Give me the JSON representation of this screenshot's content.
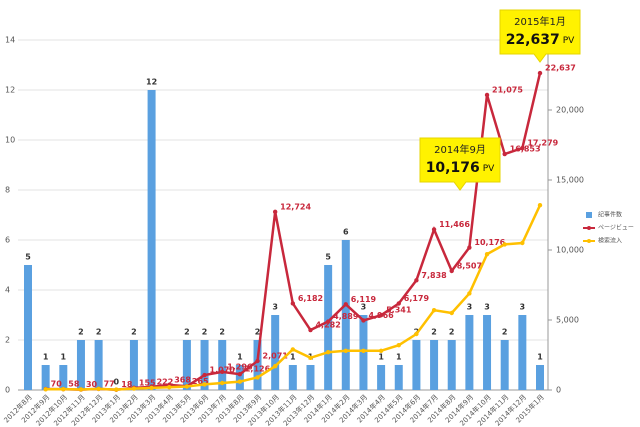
{
  "chart_data": {
    "type": "combo",
    "categories": [
      "2012年8月",
      "2012年9月",
      "2012年10月",
      "2012年11月",
      "2012年12月",
      "2013年1月",
      "2013年2月",
      "2013年3月",
      "2013年4月",
      "2013年5月",
      "2013年6月",
      "2013年7月",
      "2013年8月",
      "2013年9月",
      "2013年10月",
      "2013年11月",
      "2013年12月",
      "2014年1月",
      "2014年2月",
      "2014年3月",
      "2014年4月",
      "2014年5月",
      "2014年6月",
      "2014年7月",
      "2014年8月",
      "2014年9月",
      "2014年10月",
      "2014年11月",
      "2014年12月",
      "2015年1月"
    ],
    "ylim": [
      0,
      14
    ],
    "yticks": [
      0,
      2,
      4,
      6,
      8,
      10,
      12,
      14
    ],
    "y2lim": [
      0,
      25000
    ],
    "y2ticks": [
      0,
      {
        "value": 5000,
        "label": "5,000"
      },
      {
        "value": 10000,
        "label": "10,000"
      },
      {
        "value": 15000,
        "label": "15,000"
      },
      {
        "value": 20000,
        "label": "20,000"
      }
    ],
    "grid": true,
    "legend": "right",
    "series": [
      {
        "name": "記事件数",
        "type": "bar",
        "color": "#5aa0e0",
        "values": [
          5,
          1,
          1,
          2,
          2,
          0,
          2,
          12,
          null,
          2,
          2,
          2,
          1,
          2,
          3,
          1,
          1,
          5,
          6,
          3,
          1,
          1,
          2,
          2,
          2,
          3,
          3,
          2,
          3,
          1
        ]
      },
      {
        "name": "ページビュー",
        "type": "line",
        "axis": "y2",
        "color": "#c8283c",
        "values": [
          null,
          70,
          58,
          30,
          77,
          18,
          155,
          222,
          368,
          265,
          1070,
          1296,
          1126,
          2071,
          12724,
          6182,
          4282,
          4889,
          6119,
          4966,
          5341,
          6179,
          7838,
          11466,
          8507,
          10176,
          21075,
          16853,
          17279,
          22637
        ],
        "value_labels": [
          null,
          "70",
          "58",
          "30",
          "77",
          "18",
          "155",
          "222",
          "368",
          "265",
          "1,070",
          "1,296",
          "1,126",
          "2,071",
          "12,724",
          "6,182",
          "4,282",
          "4,889",
          "6,119",
          "4,966",
          "5,341",
          "6,179",
          "7,838",
          "11,466",
          "8,507",
          "10,176",
          "21,075",
          "16,853",
          "17,279",
          "22,637"
        ]
      },
      {
        "name": "検索流入",
        "type": "line",
        "axis": "y2",
        "color": "#ffc000",
        "values": [
          null,
          50,
          60,
          40,
          80,
          30,
          100,
          150,
          200,
          250,
          400,
          500,
          600,
          900,
          1700,
          2900,
          2300,
          2700,
          2800,
          2800,
          2800,
          3200,
          4000,
          5700,
          5500,
          6900,
          9700,
          10400,
          10500,
          13200
        ]
      }
    ],
    "annotations": [
      {
        "title": "2015年1月",
        "value": "22,637",
        "unit": "PV"
      },
      {
        "title": "2014年9月",
        "value": "10,176",
        "unit": "PV"
      }
    ]
  }
}
